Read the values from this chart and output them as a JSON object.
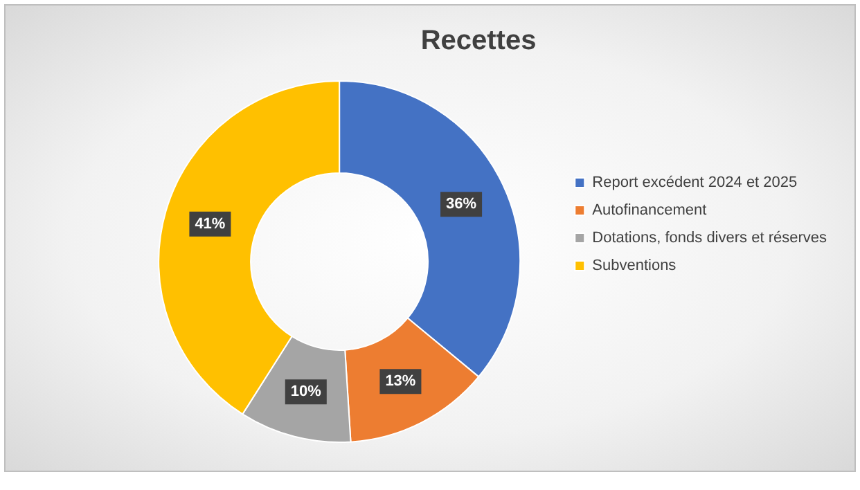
{
  "chart_data": {
    "type": "donut",
    "title": "Recettes",
    "categories": [
      "Report excédent 2024 et 2025",
      "Autofinancement",
      "Dotations, fonds divers et réserves",
      "Subventions"
    ],
    "values": [
      36,
      13,
      10,
      41
    ],
    "colors": [
      "#4472c4",
      "#ed7d31",
      "#a5a5a5",
      "#ffc000"
    ],
    "value_labels": [
      "36%",
      "13%",
      "10%",
      "41%"
    ],
    "legend": "right"
  }
}
